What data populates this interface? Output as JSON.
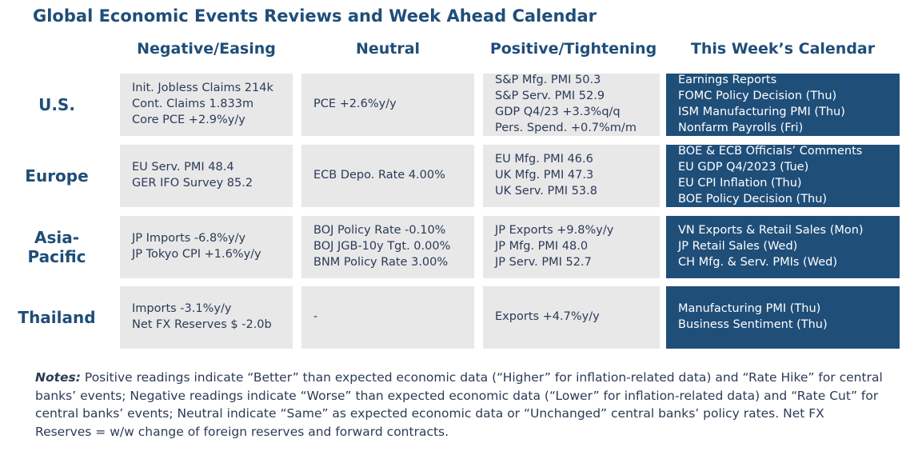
{
  "title": "Global Economic Events Reviews and Week Ahead Calendar",
  "columns": [
    "Negative/Easing",
    "Neutral",
    "Positive/Tightening",
    "This Week’s Calendar"
  ],
  "rows": [
    {
      "label": "U.S.",
      "negative": [
        "Init. Jobless Claims 214k",
        "Cont. Claims 1.833m",
        "Core PCE +2.9%y/y"
      ],
      "neutral": [
        "PCE +2.6%y/y"
      ],
      "positive": [
        "S&P Mfg. PMI 50.3",
        "S&P Serv. PMI 52.9",
        "GDP Q4/23 +3.3%q/q",
        "Pers. Spend. +0.7%m/m"
      ],
      "calendar": [
        "Earnings Reports",
        "FOMC Policy Decision (Thu)",
        "ISM Manufacturing PMI (Thu)",
        "Nonfarm Payrolls (Fri)"
      ]
    },
    {
      "label": "Europe",
      "negative": [
        "EU Serv. PMI 48.4",
        "GER IFO Survey 85.2"
      ],
      "neutral": [
        "ECB Depo. Rate 4.00%"
      ],
      "positive": [
        "EU Mfg. PMI 46.6",
        "UK Mfg. PMI 47.3",
        "UK Serv. PMI 53.8"
      ],
      "calendar": [
        "BOE & ECB Officials’ Comments",
        "EU GDP Q4/2023 (Tue)",
        "EU CPI Inflation (Thu)",
        "BOE Policy Decision (Thu)"
      ]
    },
    {
      "label_line1": "Asia-",
      "label_line2": "Pacific",
      "negative": [
        "JP Imports -6.8%y/y",
        "JP Tokyo CPI +1.6%y/y"
      ],
      "neutral": [
        "BOJ Policy Rate -0.10%",
        "BOJ JGB-10y Tgt. 0.00%",
        "BNM Policy Rate 3.00%"
      ],
      "positive": [
        "JP Exports +9.8%y/y",
        "JP Mfg. PMI 48.0",
        "JP Serv. PMI 52.7"
      ],
      "calendar": [
        "VN Exports & Retail Sales (Mon)",
        "JP Retail Sales (Wed)",
        "CH Mfg. & Serv. PMIs (Wed)"
      ]
    },
    {
      "label": "Thailand",
      "negative": [
        "Imports -3.1%y/y",
        "Net FX Reserves $ -2.0b"
      ],
      "neutral": [
        "-"
      ],
      "positive": [
        "Exports +4.7%y/y"
      ],
      "calendar": [
        "Manufacturing PMI (Thu)",
        "Business Sentiment (Thu)"
      ]
    }
  ],
  "notes": {
    "label": "Notes:",
    "text": " Positive readings indicate “Better” than expected economic data (“Higher” for inflation-related data) and “Rate Hike” for central banks’ events; Negative readings indicate “Worse” than expected economic data (“Lower” for inflation-related data) and “Rate Cut” for central banks’ events; Neutral indicate “Same” as expected economic data or “Unchanged” central banks’ policy rates. Net FX Reserves = w/w change of foreign reserves and forward contracts."
  },
  "colors": {
    "header_text": "#1f4e79",
    "cell_background": "#e8e8e9",
    "calendar_background": "#1f4e79",
    "calendar_text": "#ffffff"
  }
}
